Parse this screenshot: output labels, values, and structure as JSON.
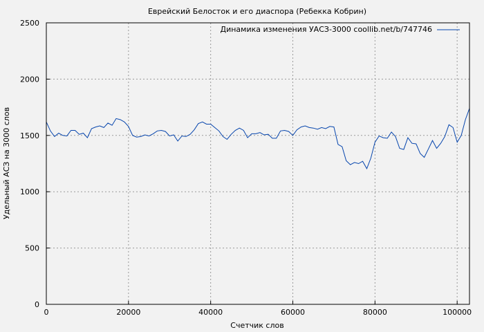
{
  "chart_data": {
    "type": "line",
    "title": "Еврейский Белосток и его диаспора (Ребекка Кобрин)",
    "xlabel": "Счетчик слов",
    "ylabel": "Удельный АСЗ на 3000 слов",
    "xlim": [
      0,
      103000
    ],
    "ylim": [
      0,
      2500
    ],
    "xticks": [
      0,
      20000,
      40000,
      60000,
      80000,
      100000
    ],
    "yticks": [
      0,
      500,
      1000,
      1500,
      2000,
      2500
    ],
    "grid": true,
    "legend_position": "top-right",
    "series": [
      {
        "name": "Динамика изменения УАСЗ-3000 coollib.net/b/747746",
        "color": "#0645ad",
        "x": [
          0,
          1000,
          2000,
          3000,
          4000,
          5000,
          6000,
          7000,
          8000,
          9000,
          10000,
          11000,
          12000,
          13000,
          14000,
          15000,
          16000,
          17000,
          18000,
          19000,
          20000,
          21000,
          22000,
          23000,
          24000,
          25000,
          26000,
          27000,
          28000,
          29000,
          30000,
          31000,
          32000,
          33000,
          34000,
          35000,
          36000,
          37000,
          38000,
          39000,
          40000,
          41000,
          42000,
          43000,
          44000,
          45000,
          46000,
          47000,
          48000,
          49000,
          50000,
          51000,
          52000,
          53000,
          54000,
          55000,
          56000,
          57000,
          58000,
          59000,
          60000,
          61000,
          62000,
          63000,
          64000,
          65000,
          66000,
          67000,
          68000,
          69000,
          70000,
          71000,
          72000,
          73000,
          74000,
          75000,
          76000,
          77000,
          78000,
          79000,
          80000,
          81000,
          82000,
          83000,
          84000,
          85000,
          86000,
          87000,
          88000,
          89000,
          90000,
          91000,
          92000,
          93000,
          94000,
          95000,
          96000,
          97000,
          98000,
          99000,
          100000,
          101000,
          102000,
          103000
        ],
        "y": [
          1620,
          1540,
          1490,
          1520,
          1500,
          1495,
          1545,
          1545,
          1510,
          1520,
          1480,
          1560,
          1575,
          1585,
          1570,
          1610,
          1590,
          1650,
          1640,
          1620,
          1580,
          1500,
          1485,
          1490,
          1505,
          1495,
          1515,
          1540,
          1545,
          1535,
          1495,
          1505,
          1450,
          1495,
          1490,
          1510,
          1550,
          1605,
          1620,
          1600,
          1600,
          1570,
          1540,
          1490,
          1465,
          1510,
          1545,
          1565,
          1545,
          1480,
          1515,
          1515,
          1525,
          1505,
          1510,
          1475,
          1475,
          1540,
          1545,
          1535,
          1500,
          1550,
          1575,
          1585,
          1570,
          1565,
          1555,
          1570,
          1560,
          1580,
          1575,
          1420,
          1400,
          1275,
          1240,
          1260,
          1250,
          1270,
          1205,
          1300,
          1440,
          1495,
          1480,
          1475,
          1530,
          1490,
          1385,
          1375,
          1480,
          1430,
          1425,
          1340,
          1305,
          1380,
          1455,
          1385,
          1430,
          1490,
          1595,
          1570,
          1440,
          1500,
          1640,
          1740
        ]
      }
    ]
  }
}
